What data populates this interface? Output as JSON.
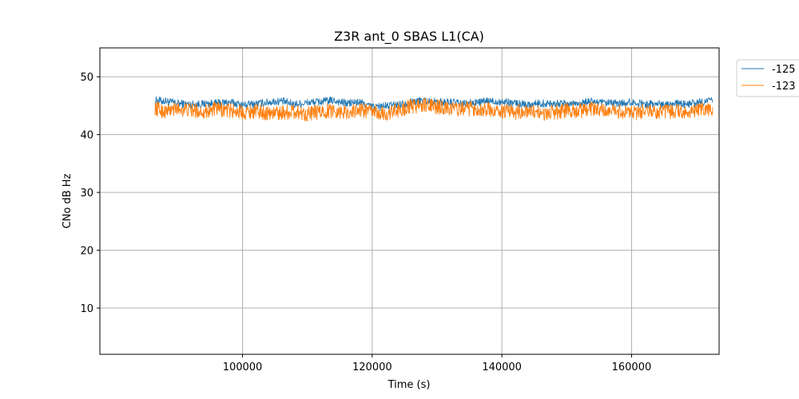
{
  "chart_data": {
    "type": "line",
    "title": "Z3R ant_0 SBAS L1(CA)",
    "xlabel": "Time (s)",
    "ylabel": "CNo dB Hz",
    "xlim": [
      78000,
      173500
    ],
    "ylim": [
      2,
      55
    ],
    "xticks": [
      100000,
      120000,
      140000,
      160000
    ],
    "yticks": [
      10,
      20,
      30,
      40,
      50
    ],
    "grid": true,
    "legend_position": "outside-top-right",
    "series": [
      {
        "name": "-125",
        "color": "#1f77b4",
        "x": [
          86500,
          88000,
          90000,
          92000,
          94000,
          96000,
          98000,
          100000,
          102000,
          104000,
          106000,
          108000,
          110000,
          112000,
          114000,
          116000,
          118000,
          120000,
          122000,
          124000,
          126000,
          128000,
          130000,
          132000,
          134000,
          136000,
          138000,
          140000,
          142000,
          144000,
          146000,
          148000,
          150000,
          152000,
          154000,
          156000,
          158000,
          160000,
          162000,
          164000,
          166000,
          168000,
          170000,
          172500
        ],
        "y": [
          45.9,
          45.8,
          45.4,
          45.2,
          45.3,
          45.4,
          45.6,
          45.1,
          45.3,
          45.6,
          45.8,
          45.2,
          45.5,
          45.7,
          45.9,
          45.4,
          45.6,
          44.8,
          44.9,
          45.2,
          45.6,
          45.9,
          45.6,
          45.6,
          45.3,
          45.5,
          45.8,
          45.7,
          45.4,
          45.2,
          45.4,
          45.4,
          45.3,
          45.5,
          45.7,
          45.4,
          45.4,
          45.6,
          45.3,
          45.3,
          45.4,
          45.2,
          45.5,
          45.9
        ]
      },
      {
        "name": "-123",
        "color": "#ff7f0e",
        "x": [
          86500,
          88000,
          90000,
          92000,
          94000,
          96000,
          98000,
          100000,
          102000,
          104000,
          106000,
          108000,
          110000,
          112000,
          114000,
          116000,
          118000,
          120000,
          122000,
          124000,
          126000,
          128000,
          130000,
          132000,
          134000,
          136000,
          138000,
          140000,
          142000,
          144000,
          146000,
          148000,
          150000,
          152000,
          154000,
          156000,
          158000,
          160000,
          162000,
          164000,
          166000,
          168000,
          170000,
          172500
        ],
        "y": [
          44.6,
          44.0,
          44.5,
          44.2,
          44.0,
          44.4,
          44.2,
          43.9,
          44.1,
          43.7,
          43.8,
          44.0,
          43.6,
          43.9,
          44.2,
          43.8,
          44.3,
          44.0,
          43.5,
          44.2,
          44.9,
          45.1,
          44.8,
          44.6,
          44.4,
          44.5,
          44.3,
          44.0,
          43.9,
          44.1,
          43.7,
          43.8,
          44.2,
          44.1,
          44.4,
          44.0,
          43.9,
          43.7,
          44.0,
          43.8,
          43.9,
          43.9,
          44.0,
          44.6
        ]
      }
    ]
  }
}
